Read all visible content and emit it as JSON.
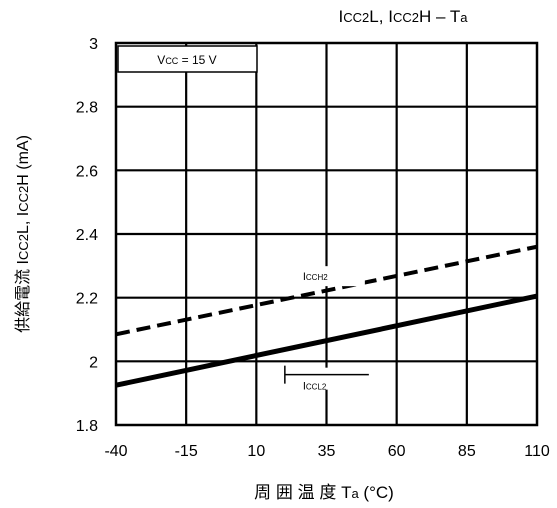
{
  "chart_data": {
    "type": "line",
    "title": {
      "main": "I",
      "parts": [
        {
          "t": "I",
          "sub": false
        },
        {
          "t": "CC2",
          "sub": true
        },
        {
          "t": "L, ",
          "sub": false
        },
        {
          "t": "I",
          "sub": false
        },
        {
          "t": "CC2",
          "sub": true
        },
        {
          "t": "H – T",
          "sub": false
        },
        {
          "t": "a",
          "sub": true
        }
      ]
    },
    "xlabel": "周 囲 温 度 Ta (°C)",
    "ylabel_jp": "供給電流",
    "ylabel_sym": "ICC2L, ICC2H (mA)",
    "xlim": [
      -40,
      110
    ],
    "ylim": [
      1.8,
      3.0
    ],
    "xticks": [
      -40,
      -15,
      10,
      35,
      60,
      85,
      110
    ],
    "yticks": [
      1.8,
      2.0,
      2.2,
      2.4,
      2.6,
      2.8,
      3.0
    ],
    "ytick_labels": [
      "1.8",
      "2",
      "2.2",
      "2.4",
      "2.6",
      "2.8",
      "3"
    ],
    "grid": true,
    "condition_label": "VCC = 15 V",
    "series": [
      {
        "name": "ICCH2",
        "style": "dashed",
        "x": [
          -40,
          110
        ],
        "y": [
          2.085,
          2.36
        ]
      },
      {
        "name": "ICCL2",
        "style": "solid",
        "x": [
          -40,
          110
        ],
        "y": [
          1.925,
          2.205
        ]
      }
    ],
    "annotations": [
      {
        "series": "ICCH2",
        "text": "ICCH2",
        "at_x": 28,
        "at_y": 2.255
      },
      {
        "series": "ICCL2",
        "text": "ICCL2",
        "at_x": 28,
        "at_y": 1.955
      }
    ]
  }
}
